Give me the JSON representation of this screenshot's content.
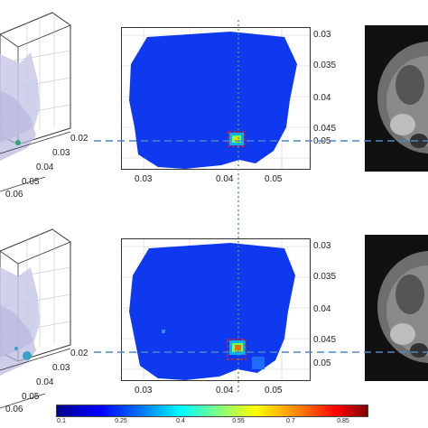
{
  "panels": {
    "top": {
      "left3d": {
        "axis_ticks": [
          "0.02",
          "0.03",
          "0.04",
          "0.05",
          "0.06"
        ]
      },
      "map": {
        "x_ticks": [
          "0.03",
          "0.04",
          "0.05"
        ],
        "y_ticks": [
          "0.03",
          "0.035",
          "0.04",
          "0.045",
          "0.05"
        ]
      }
    },
    "bottom": {
      "left3d": {
        "axis_ticks": [
          "0.02",
          "0.03",
          "0.04",
          "0.05",
          "0.06"
        ]
      },
      "map": {
        "x_ticks": [
          "0.03",
          "0.04",
          "0.05"
        ],
        "y_ticks": [
          "0.03",
          "0.035",
          "0.04",
          "0.045",
          "0.05"
        ]
      }
    }
  },
  "colorbar": {
    "ticks": [
      "0.1",
      "0.25",
      "0.4",
      "0.55",
      "0.7",
      "0.85"
    ],
    "colors": [
      "#00008f",
      "#0000ff",
      "#00ffff",
      "#ffff00",
      "#ff0000",
      "#800000"
    ]
  },
  "colors": {
    "map_blue": "#0f39ef",
    "crosshair_green": "#4ca84c",
    "crosshair_blue": "#4b86c8",
    "hotspot_red": "#e02020",
    "volume": "#c9c9e8"
  }
}
